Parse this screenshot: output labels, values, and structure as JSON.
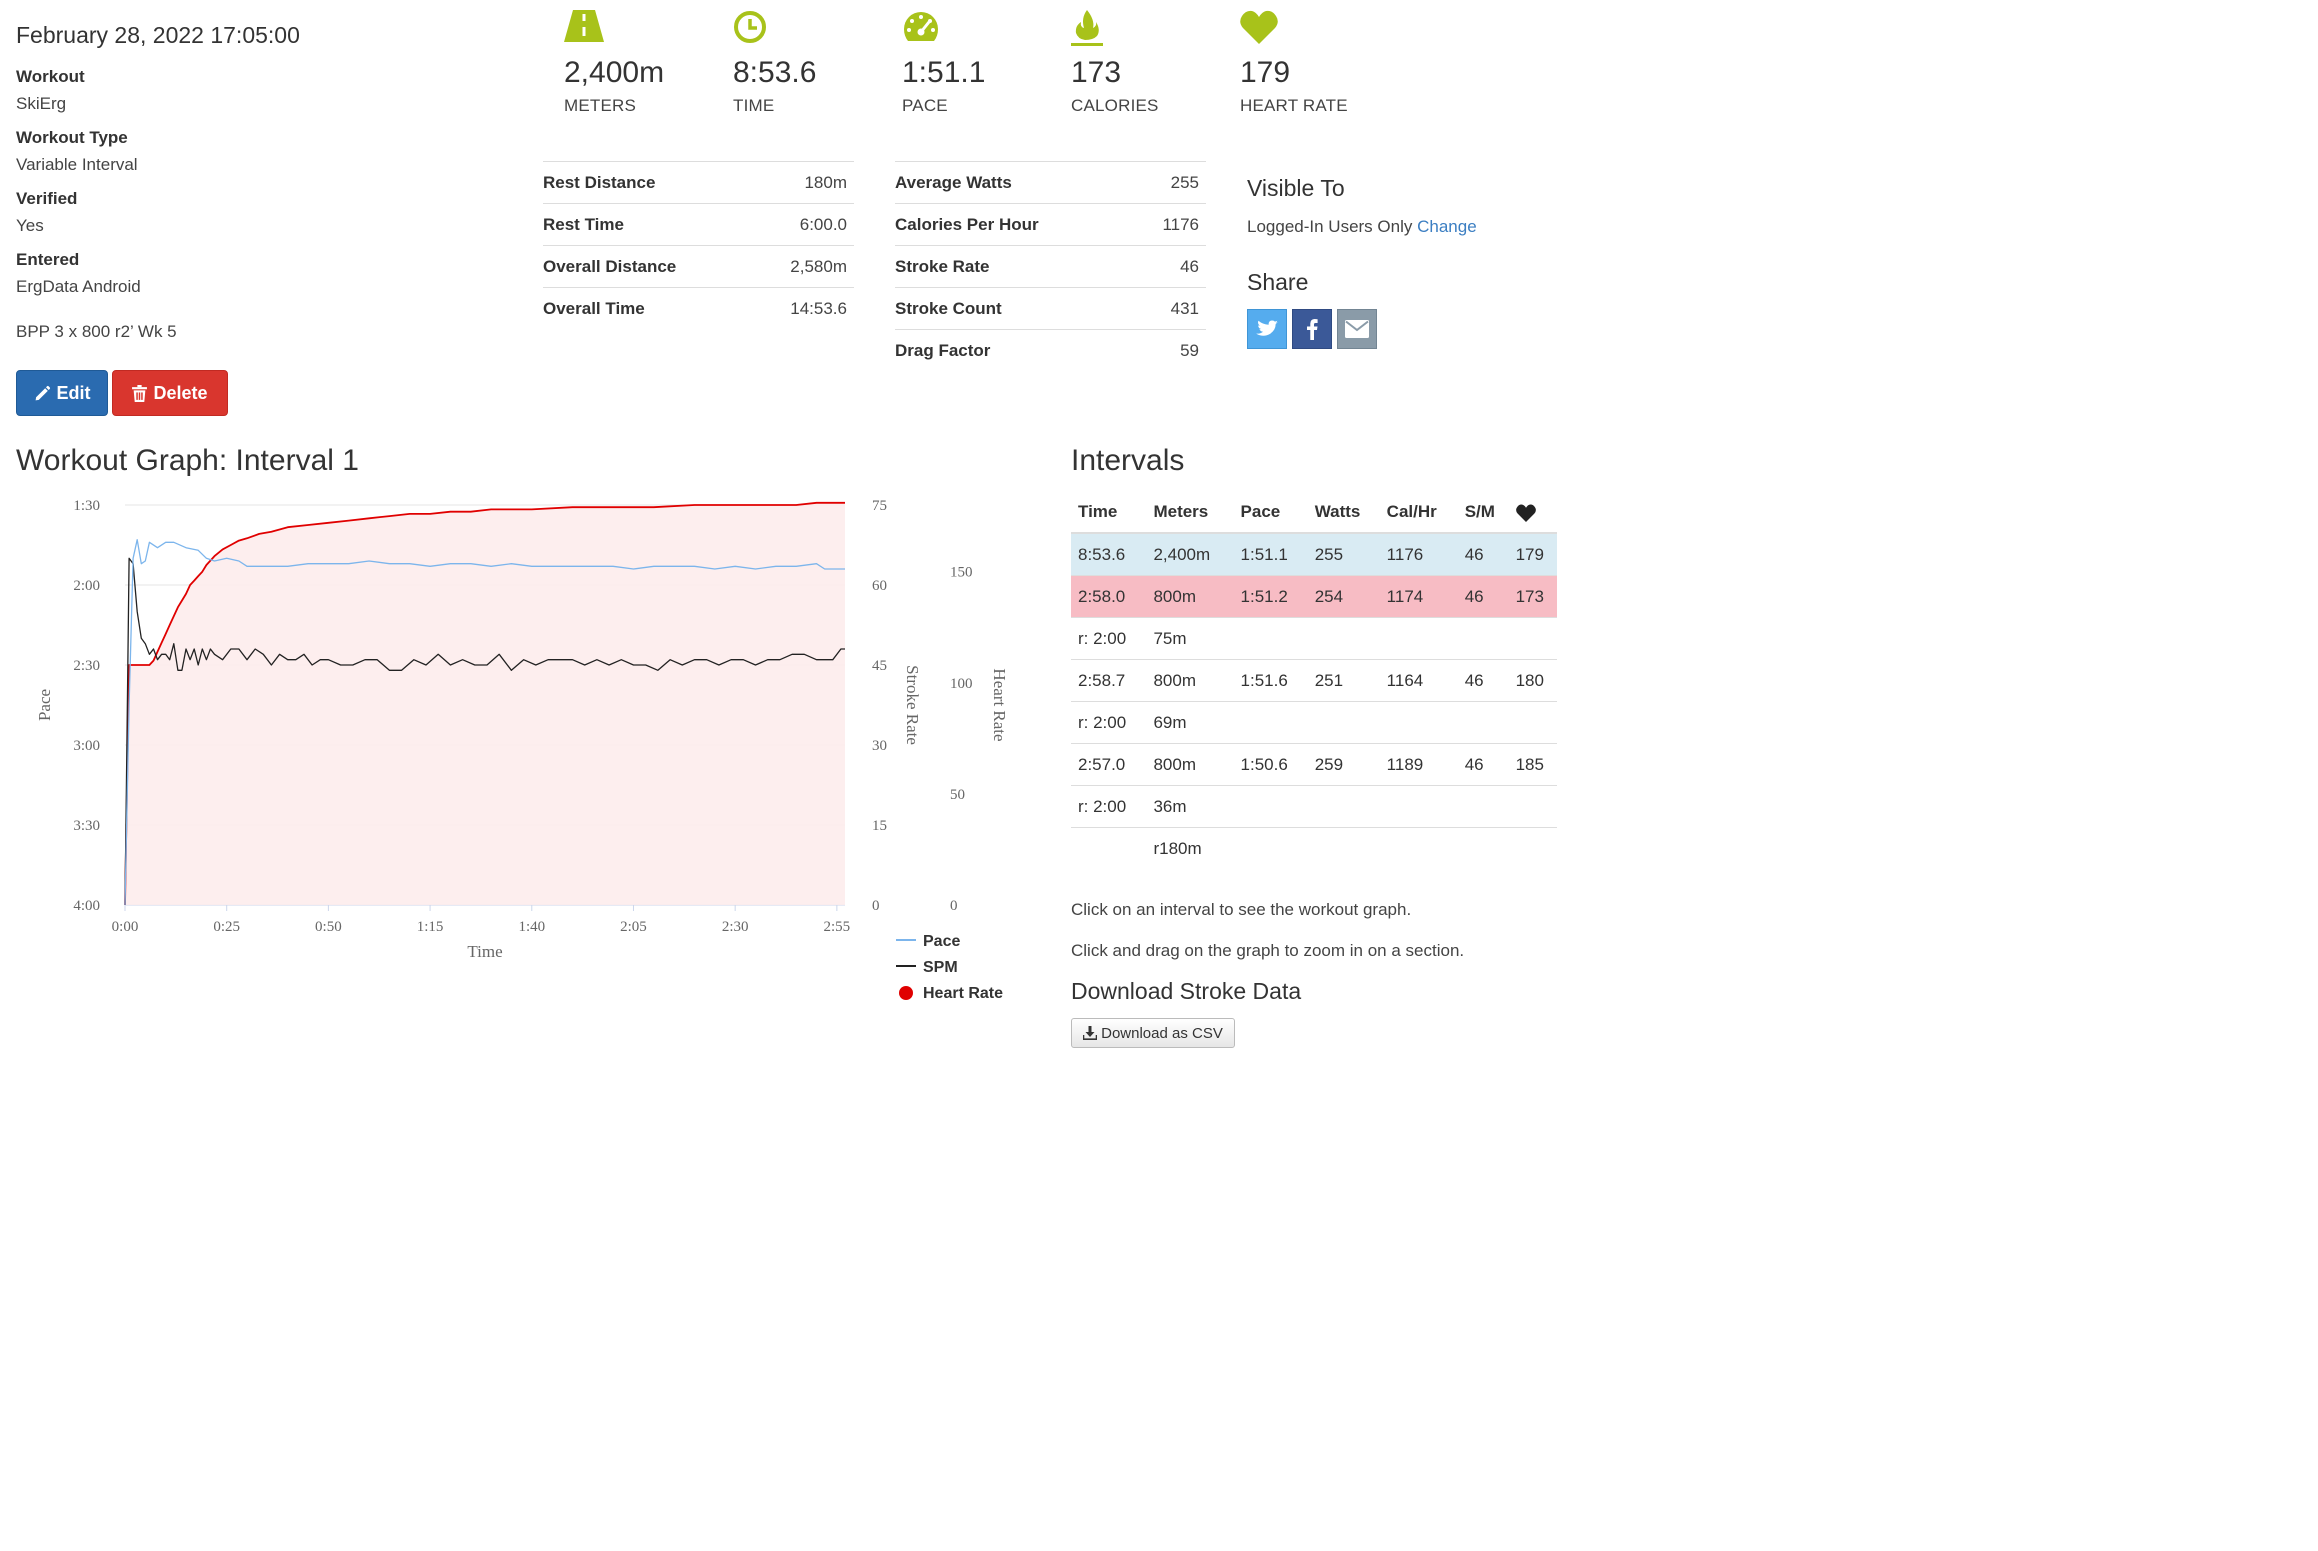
{
  "workout": {
    "date": "February 28, 2022 17:05:00",
    "fields": [
      {
        "label": "Workout",
        "value": "SkiErg"
      },
      {
        "label": "Workout Type",
        "value": "Variable Interval"
      },
      {
        "label": "Verified",
        "value": "Yes"
      },
      {
        "label": "Entered",
        "value": "ErgData Android"
      }
    ],
    "notes": "BPP 3 x 800 r2’ Wk 5",
    "edit_label": "Edit",
    "delete_label": "Delete"
  },
  "stats": [
    {
      "icon": "road-icon",
      "value": "2,400m",
      "label": "METERS"
    },
    {
      "icon": "clock-icon",
      "value": "8:53.6",
      "label": "TIME"
    },
    {
      "icon": "speedometer-icon",
      "value": "1:51.1",
      "label": "PACE"
    },
    {
      "icon": "flame-icon",
      "value": "173",
      "label": "CALORIES"
    },
    {
      "icon": "heart-icon",
      "value": "179",
      "label": "HEART RATE"
    }
  ],
  "summary_left": [
    {
      "label": "Rest Distance",
      "value": "180m"
    },
    {
      "label": "Rest Time",
      "value": "6:00.0"
    },
    {
      "label": "Overall Distance",
      "value": "2,580m"
    },
    {
      "label": "Overall Time",
      "value": "14:53.6"
    }
  ],
  "summary_right": [
    {
      "label": "Average Watts",
      "value": "255"
    },
    {
      "label": "Calories Per Hour",
      "value": "1176"
    },
    {
      "label": "Stroke Rate",
      "value": "46"
    },
    {
      "label": "Stroke Count",
      "value": "431"
    },
    {
      "label": "Drag Factor",
      "value": "59"
    }
  ],
  "visibility": {
    "heading": "Visible To",
    "value": "Logged-In Users Only",
    "change_label": "Change"
  },
  "share": {
    "heading": "Share",
    "buttons": [
      {
        "icon": "twitter-icon",
        "color": "#55acee"
      },
      {
        "icon": "facebook-icon",
        "color": "#3b5998"
      },
      {
        "icon": "email-icon",
        "color": "#8a9ba8"
      }
    ]
  },
  "graph": {
    "title": "Workout Graph: Interval 1"
  },
  "chart_data": {
    "type": "line",
    "xlabel": "Time",
    "x_ticks": [
      "0:00",
      "0:25",
      "0:50",
      "1:15",
      "1:40",
      "2:05",
      "2:30",
      "2:55"
    ],
    "x_range_seconds": [
      0,
      177
    ],
    "axes": {
      "pace": {
        "label": "Pace",
        "ticks": [
          "1:30",
          "2:00",
          "2:30",
          "3:00",
          "3:30",
          "4:00"
        ],
        "range_seconds": [
          90,
          240
        ],
        "inverted": true
      },
      "stroke_rate": {
        "label": "Stroke Rate",
        "ticks": [
          "75",
          "60",
          "45",
          "30",
          "15",
          "0"
        ],
        "range": [
          0,
          75
        ]
      },
      "heart_rate": {
        "label": "Heart Rate",
        "ticks": [
          "150",
          "100",
          "50",
          "0"
        ],
        "range": [
          0,
          180
        ]
      }
    },
    "legend": [
      "Pace",
      "SPM",
      "Heart Rate"
    ],
    "series": [
      {
        "name": "Pace",
        "axis": "pace",
        "color": "#7cb5ec",
        "x": [
          0,
          1,
          2,
          3,
          4,
          5,
          6,
          8,
          10,
          12,
          15,
          18,
          20,
          22,
          25,
          28,
          30,
          35,
          40,
          45,
          50,
          55,
          60,
          65,
          70,
          75,
          80,
          85,
          90,
          95,
          100,
          105,
          110,
          115,
          120,
          125,
          130,
          135,
          140,
          145,
          150,
          155,
          160,
          165,
          170,
          172,
          175,
          177
        ],
        "y": [
          240,
          165,
          110,
          103,
          112,
          111,
          104,
          106,
          104,
          104,
          106,
          107,
          110,
          111,
          110,
          111,
          113,
          113,
          113,
          112,
          112,
          112,
          111,
          112,
          112,
          113,
          112,
          112,
          113,
          112,
          113,
          113,
          113,
          113,
          113,
          114,
          113,
          113,
          113,
          114,
          113,
          114,
          113,
          113,
          112,
          114,
          114,
          114
        ]
      },
      {
        "name": "SPM",
        "axis": "stroke_rate",
        "color": "#222222",
        "x": [
          0,
          1,
          2,
          3,
          4,
          5,
          6,
          7,
          8,
          9,
          10,
          11,
          12,
          13,
          14,
          15,
          16,
          17,
          18,
          19,
          20,
          21,
          22,
          24,
          26,
          28,
          30,
          32,
          34,
          36,
          38,
          40,
          42,
          44,
          46,
          48,
          50,
          53,
          56,
          59,
          62,
          65,
          68,
          71,
          74,
          77,
          80,
          83,
          86,
          89,
          92,
          95,
          98,
          101,
          104,
          107,
          110,
          113,
          116,
          119,
          122,
          125,
          128,
          131,
          134,
          137,
          140,
          143,
          146,
          149,
          152,
          155,
          158,
          161,
          164,
          167,
          170,
          172,
          174,
          176,
          177
        ],
        "y": [
          0,
          65,
          64,
          55,
          50,
          49,
          47,
          48,
          46,
          47,
          47,
          46,
          49,
          44,
          44,
          48,
          46,
          48,
          45,
          48,
          46,
          48,
          47,
          46,
          48,
          48,
          46,
          48,
          47,
          45,
          47,
          46,
          46,
          47,
          45,
          46,
          46,
          45,
          45,
          46,
          46,
          44,
          44,
          46,
          45,
          47,
          45,
          46,
          45,
          45,
          47,
          44,
          46,
          45,
          46,
          46,
          46,
          45,
          46,
          45,
          46,
          45,
          45,
          44,
          46,
          45,
          46,
          46,
          45,
          46,
          46,
          45,
          46,
          46,
          47,
          47,
          46,
          46,
          46,
          48,
          48
        ]
      },
      {
        "name": "Heart Rate",
        "axis": "heart_rate",
        "color": "#e00000",
        "x": [
          0,
          1,
          2,
          3,
          4,
          5,
          6,
          7,
          8,
          9,
          10,
          11,
          12,
          13,
          14,
          15,
          16,
          17,
          18,
          19,
          20,
          22,
          24,
          26,
          28,
          30,
          33,
          36,
          40,
          45,
          50,
          55,
          60,
          65,
          70,
          75,
          80,
          85,
          90,
          100,
          110,
          120,
          130,
          140,
          150,
          160,
          165,
          170,
          175,
          177
        ],
        "y": [
          0,
          108,
          108,
          108,
          108,
          108,
          108,
          110,
          114,
          118,
          122,
          126,
          130,
          134,
          137,
          140,
          144,
          146,
          148,
          150,
          153,
          157,
          160,
          162,
          164,
          165,
          167,
          168,
          170,
          171,
          172,
          173,
          174,
          175,
          176,
          176,
          177,
          177,
          178,
          178,
          179,
          179,
          179,
          180,
          180,
          180,
          180,
          181,
          181,
          181
        ]
      }
    ]
  },
  "intervals": {
    "title": "Intervals",
    "columns": [
      "Time",
      "Meters",
      "Pace",
      "Watts",
      "Cal/Hr",
      "S/M"
    ],
    "hr_column_icon": "heart-icon",
    "rows": [
      {
        "kind": "summary",
        "cells": [
          "8:53.6",
          "2,400m",
          "1:51.1",
          "255",
          "1176",
          "46",
          "179"
        ]
      },
      {
        "kind": "active",
        "cells": [
          "2:58.0",
          "800m",
          "1:51.2",
          "254",
          "1174",
          "46",
          "173"
        ]
      },
      {
        "kind": "rest",
        "cells": [
          "r: 2:00",
          "75m",
          "",
          "",
          "",
          "",
          ""
        ]
      },
      {
        "kind": "work",
        "cells": [
          "2:58.7",
          "800m",
          "1:51.6",
          "251",
          "1164",
          "46",
          "180"
        ]
      },
      {
        "kind": "rest",
        "cells": [
          "r: 2:00",
          "69m",
          "",
          "",
          "",
          "",
          ""
        ]
      },
      {
        "kind": "work",
        "cells": [
          "2:57.0",
          "800m",
          "1:50.6",
          "259",
          "1189",
          "46",
          "185"
        ]
      },
      {
        "kind": "rest",
        "cells": [
          "r: 2:00",
          "36m",
          "",
          "",
          "",
          "",
          ""
        ]
      },
      {
        "kind": "total",
        "cells": [
          "",
          "r180m",
          "",
          "",
          "",
          "",
          ""
        ]
      }
    ],
    "hint_click": "Click on an interval to see the workout graph.",
    "hint_drag": "Click and drag on the graph to zoom in on a section.",
    "download_heading": "Download Stroke Data",
    "download_csv_label": "Download as CSV"
  },
  "colors": {
    "accent": "#a8c21a",
    "edit": "#2a6bb0",
    "delete": "#d9362e",
    "link": "#3b7ec2",
    "summary_row": "#d9ebf3",
    "active_row": "#f7bcc4"
  }
}
